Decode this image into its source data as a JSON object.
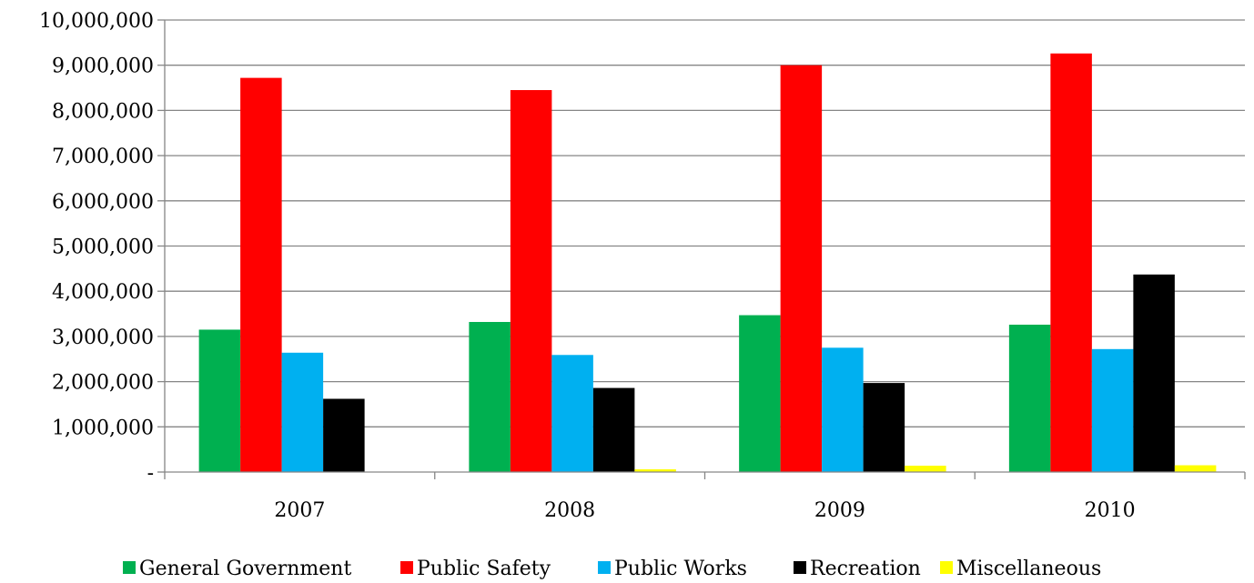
{
  "chart_data": {
    "type": "bar",
    "title": "",
    "xlabel": "",
    "ylabel": "",
    "categories": [
      "2007",
      "2008",
      "2009",
      "2010"
    ],
    "ylim": [
      0,
      10000000
    ],
    "yticks": [
      0,
      1000000,
      2000000,
      3000000,
      4000000,
      5000000,
      6000000,
      7000000,
      8000000,
      9000000,
      10000000
    ],
    "ytick_labels": [
      "-",
      "1,000,000",
      "2,000,000",
      "3,000,000",
      "4,000,000",
      "5,000,000",
      "6,000,000",
      "7,000,000",
      "8,000,000",
      "9,000,000",
      "10,000,000"
    ],
    "grid": "horizontal",
    "legend_position": "bottom",
    "series": [
      {
        "name": "General Government",
        "color": "#00b050",
        "values": [
          3150000,
          3320000,
          3470000,
          3260000
        ]
      },
      {
        "name": "Public Safety",
        "color": "#ff0000",
        "values": [
          8720000,
          8450000,
          9000000,
          9260000
        ]
      },
      {
        "name": "Public Works",
        "color": "#00b0f0",
        "values": [
          2640000,
          2590000,
          2750000,
          2720000
        ]
      },
      {
        "name": "Recreation",
        "color": "#000000",
        "values": [
          1620000,
          1860000,
          1970000,
          4370000
        ]
      },
      {
        "name": "Miscellaneous",
        "color": "#ffff00",
        "values": [
          0,
          60000,
          140000,
          150000
        ]
      }
    ]
  }
}
